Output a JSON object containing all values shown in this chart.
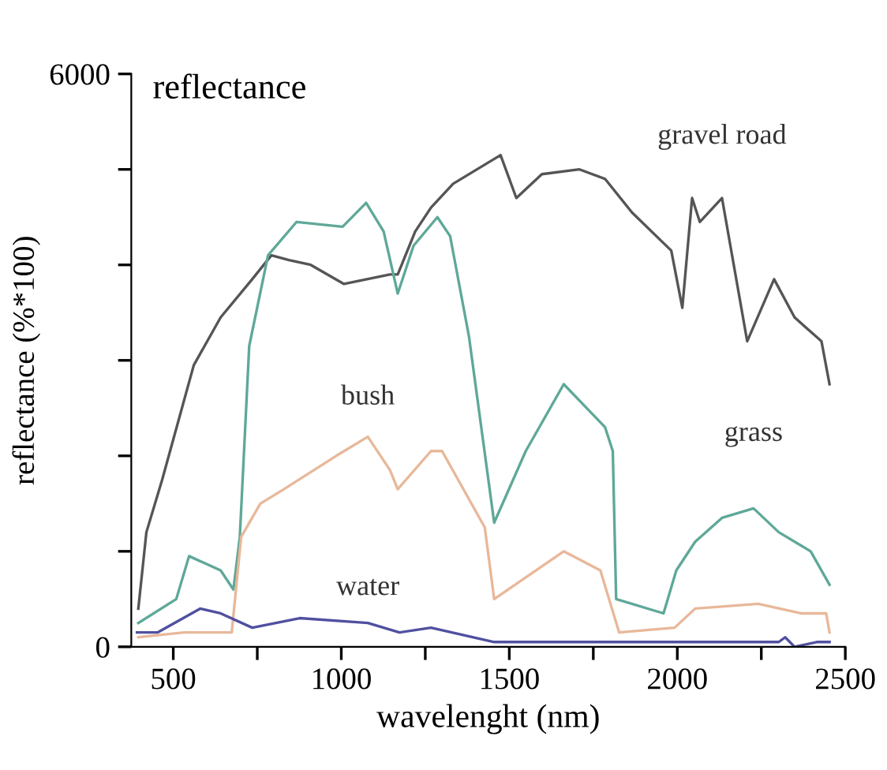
{
  "chart_data": {
    "type": "line",
    "title": "reflectance",
    "xlabel": "wavelenght (nm)",
    "ylabel": "reflectance (%*100)",
    "xlim": [
      375,
      2500
    ],
    "ylim": [
      0,
      6000
    ],
    "xticks": [
      500,
      {
        "value": 750,
        "label": null
      },
      1000,
      {
        "value": 1250,
        "label": null
      },
      1500,
      {
        "value": 1750,
        "label": null
      },
      2000,
      {
        "value": 2250,
        "label": null
      },
      2500
    ],
    "yticks": [
      0,
      {
        "value": 1000,
        "label": null
      },
      {
        "value": 2000,
        "label": null
      },
      {
        "value": 3000,
        "label": null
      },
      {
        "value": 4000,
        "label": null
      },
      {
        "value": 5000,
        "label": null
      },
      6000
    ],
    "grid": false,
    "legend": false,
    "series": [
      {
        "name": "gravel road",
        "color": "#555555",
        "x": [
          396,
          420,
          467,
          561,
          641,
          735,
          792,
          844,
          909,
          1008,
          1145,
          1168,
          1220,
          1267,
          1333,
          1474,
          1521,
          1597,
          1709,
          1785,
          1865,
          1982,
          2015,
          2044,
          2067,
          2133,
          2208,
          2288,
          2349,
          2429,
          2453
        ],
        "values": [
          400,
          1200,
          1750,
          2950,
          3450,
          3850,
          4100,
          4050,
          4000,
          3800,
          3900,
          3900,
          4350,
          4600,
          4850,
          5150,
          4700,
          4950,
          5000,
          4900,
          4550,
          4150,
          3550,
          4700,
          4450,
          4700,
          3200,
          3850,
          3450,
          3200,
          2750
        ]
      },
      {
        "name": "grass",
        "color": "#5fa898",
        "x": [
          396,
          509,
          547,
          641,
          679,
          698,
          726,
          782,
          867,
          1004,
          1074,
          1126,
          1168,
          1215,
          1286,
          1324,
          1380,
          1455,
          1549,
          1662,
          1785,
          1808,
          1818,
          1959,
          1997,
          2053,
          2133,
          2227,
          2302,
          2397,
          2453
        ],
        "values": [
          250,
          500,
          950,
          800,
          600,
          1150,
          3150,
          4100,
          4450,
          4400,
          4650,
          4350,
          3700,
          4200,
          4500,
          4300,
          3250,
          1300,
          2050,
          2750,
          2300,
          2050,
          500,
          350,
          800,
          1100,
          1350,
          1450,
          1200,
          1000,
          650
        ]
      },
      {
        "name": "bush",
        "color": "#e8b89a",
        "x": [
          396,
          533,
          674,
          702,
          759,
          829,
          985,
          1079,
          1145,
          1168,
          1267,
          1300,
          1427,
          1455,
          1662,
          1771,
          1827,
          1992,
          2053,
          2241,
          2368,
          2443,
          2453
        ],
        "values": [
          100,
          150,
          150,
          1150,
          1500,
          1650,
          2000,
          2200,
          1850,
          1650,
          2050,
          2050,
          1250,
          500,
          1000,
          800,
          150,
          200,
          400,
          450,
          350,
          350,
          150
        ]
      },
      {
        "name": "water",
        "color": "#5050a0",
        "x": [
          392,
          453,
          580,
          641,
          735,
          876,
          1079,
          1173,
          1267,
          1455,
          1926,
          2302,
          2321,
          2349,
          2415,
          2453
        ],
        "values": [
          150,
          150,
          400,
          350,
          200,
          300,
          250,
          150,
          200,
          50,
          50,
          50,
          100,
          0,
          50,
          50
        ]
      }
    ]
  }
}
